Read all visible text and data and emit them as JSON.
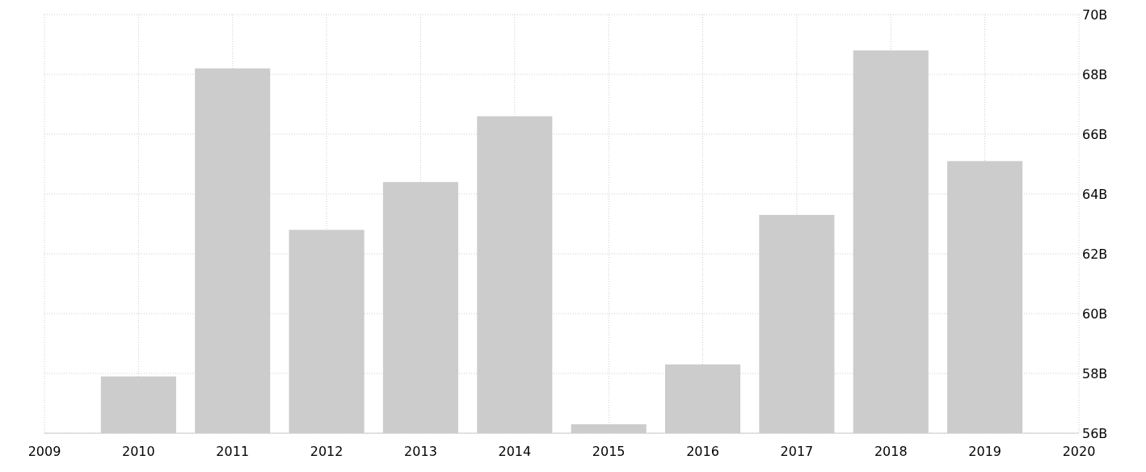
{
  "chart_data": {
    "type": "bar",
    "x": [
      2010,
      2011,
      2012,
      2013,
      2014,
      2015,
      2016,
      2017,
      2018,
      2019
    ],
    "values": [
      57.9,
      68.2,
      62.8,
      64.4,
      66.6,
      56.3,
      58.3,
      63.3,
      68.8,
      65.1
    ],
    "color": "#cccccc",
    "xlim": [
      2009,
      2020
    ],
    "xticks": [
      2009,
      2010,
      2011,
      2012,
      2013,
      2014,
      2015,
      2016,
      2017,
      2018,
      2019,
      2020
    ],
    "ylim": [
      56,
      70
    ],
    "yticks": [
      {
        "value": 56,
        "label": "56B"
      },
      {
        "value": 58,
        "label": "58B"
      },
      {
        "value": 60,
        "label": "60B"
      },
      {
        "value": 62,
        "label": "62B"
      },
      {
        "value": 64,
        "label": "64B"
      },
      {
        "value": 66,
        "label": "66B"
      },
      {
        "value": 68,
        "label": "68B"
      },
      {
        "value": 70,
        "label": "70B"
      }
    ],
    "grid": true
  }
}
